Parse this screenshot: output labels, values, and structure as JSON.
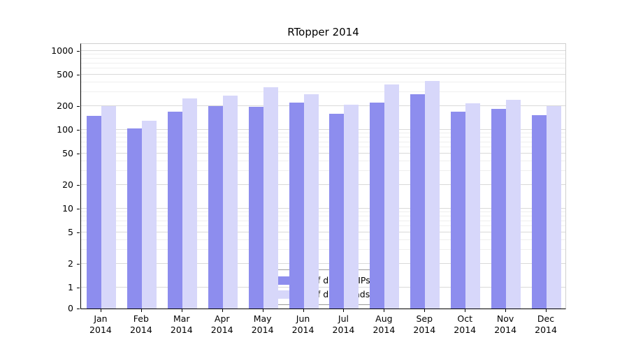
{
  "colors": {
    "distinct_ips": "#8d8dee",
    "downloads": "#d7d7fa",
    "grid_major": "#d9d9d9",
    "grid_minor": "#efefef",
    "axis": "#000000"
  },
  "chart_data": {
    "type": "bar",
    "title": "RTopper 2014",
    "yscale": "symlog",
    "grid": true,
    "legend_position": "lower center",
    "categories": [
      "Jan 2014",
      "Feb 2014",
      "Mar 2014",
      "Apr 2014",
      "May 2014",
      "Jun 2014",
      "Jul 2014",
      "Aug 2014",
      "Sep 2014",
      "Oct 2014",
      "Nov 2014",
      "Dec 2014"
    ],
    "series": [
      {
        "name": "Nb of distinct IPs",
        "color": "#8d8dee",
        "values": [
          150,
          105,
          170,
          200,
          195,
          220,
          160,
          220,
          280,
          170,
          185,
          155
        ]
      },
      {
        "name": "Nb of downloads",
        "color": "#d7d7fa",
        "values": [
          200,
          130,
          250,
          270,
          350,
          280,
          210,
          380,
          420,
          215,
          240,
          200
        ]
      }
    ],
    "yticks": [
      0,
      1,
      2,
      5,
      10,
      20,
      50,
      100,
      200,
      500,
      1000
    ],
    "ylim": [
      0,
      1000
    ],
    "xlabel": "",
    "ylabel": ""
  }
}
